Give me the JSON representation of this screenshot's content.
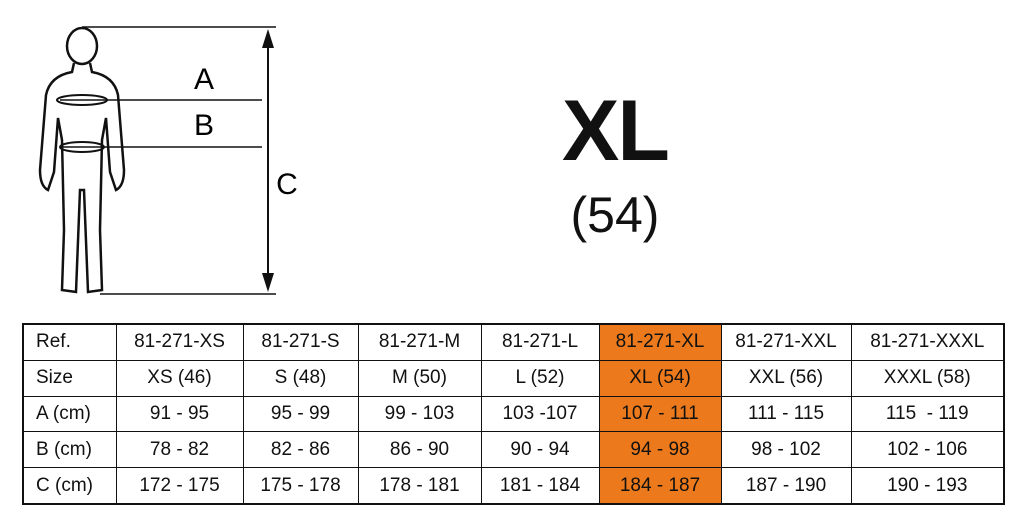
{
  "figure": {
    "labels": [
      "A",
      "B",
      "C"
    ]
  },
  "header": {
    "title": "XL",
    "subtitle": "(54)"
  },
  "table": {
    "highlight": {
      "column": 5,
      "color": "#ec7a1c"
    },
    "rows": [
      [
        "Ref.",
        "81-271-XS",
        "81-271-S",
        "81-271-M",
        "81-271-L",
        "81-271-XL",
        "81-271-XXL",
        "81-271-XXXL"
      ],
      [
        "Size",
        "XS (46)",
        "S (48)",
        "M (50)",
        "L (52)",
        "XL (54)",
        "XXL (56)",
        "XXXL (58)"
      ],
      [
        "A (cm)",
        "91 - 95",
        "95 - 99",
        "99 - 103",
        "103 -107",
        "107 - 111",
        "111 - 115",
        "115  - 119"
      ],
      [
        "B (cm)",
        "78 - 82",
        "82 - 86",
        "86 - 90",
        "90 - 94",
        "94 - 98",
        "98 - 102",
        "102 - 106"
      ],
      [
        "C (cm)",
        "172 - 175",
        "175 - 178",
        "178 - 181",
        "181 - 184",
        "184 - 187",
        "187 - 190",
        "190 - 193"
      ]
    ]
  }
}
